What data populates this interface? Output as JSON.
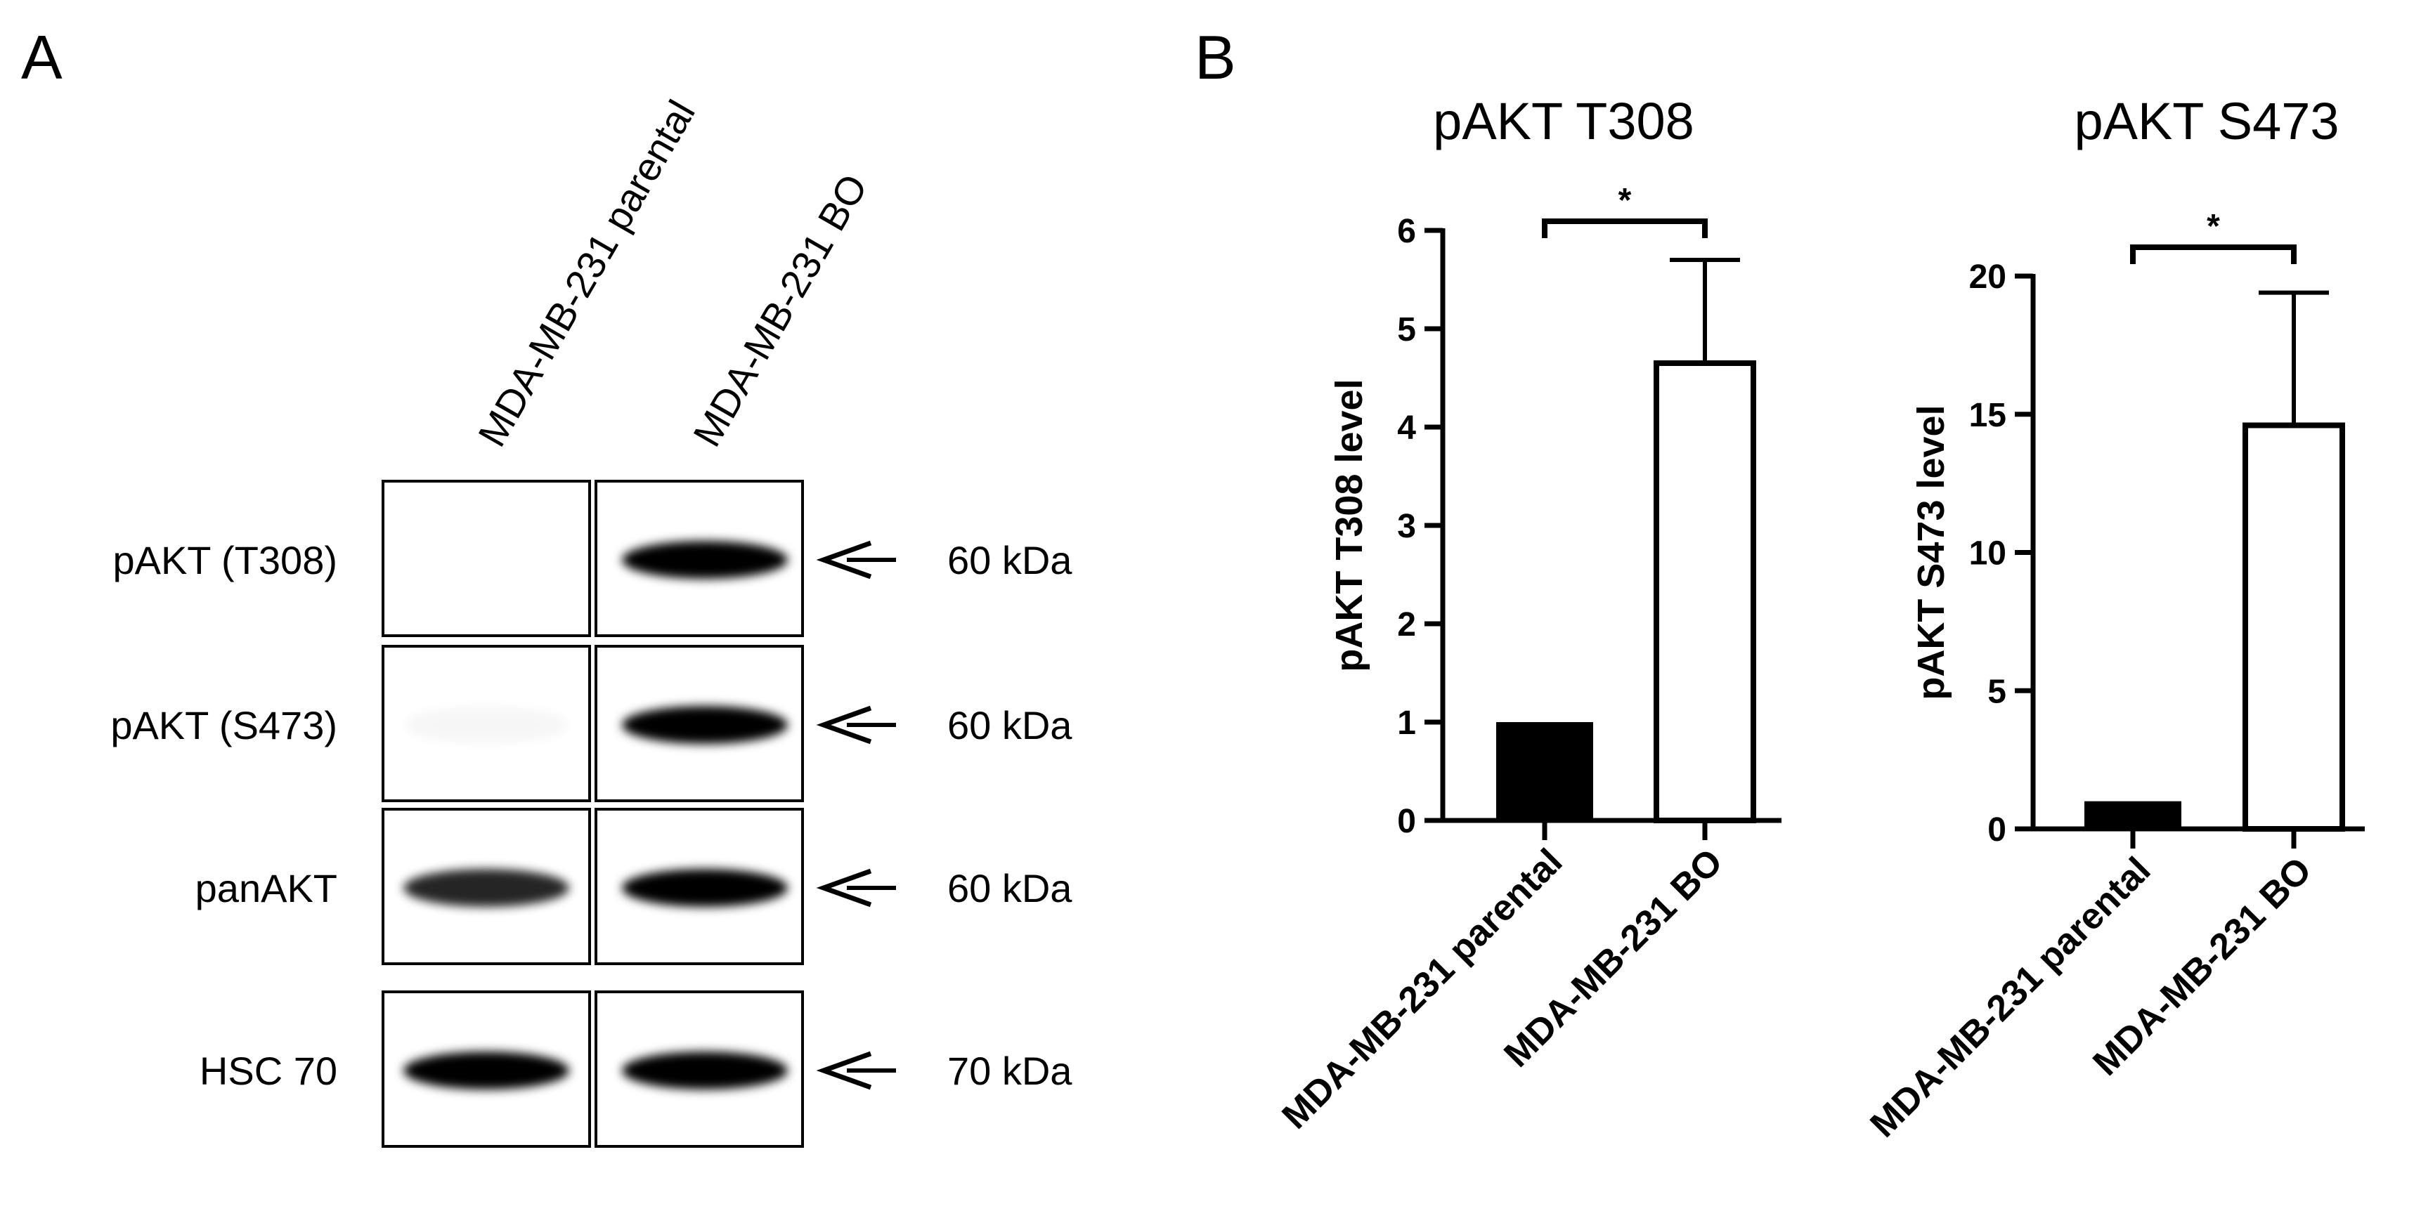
{
  "panel_a": {
    "letter": "A",
    "lanes": [
      "MDA-MB-231 parental",
      "MDA-MB-231 BO"
    ],
    "rows": [
      {
        "label": "pAKT (T308)",
        "size": "60 kDa",
        "band_intensity": [
          0.0,
          1.0
        ]
      },
      {
        "label": "pAKT (S473)",
        "size": "60 kDa",
        "band_intensity": [
          0.03,
          1.0
        ]
      },
      {
        "label": "panAKT",
        "size": "60 kDa",
        "band_intensity": [
          0.85,
          1.0
        ]
      },
      {
        "label": "HSC 70",
        "size": "70 kDa",
        "band_intensity": [
          1.0,
          1.0
        ]
      }
    ]
  },
  "panel_b": {
    "letter": "B"
  },
  "chart_data": [
    {
      "type": "bar",
      "title": "pAKT T308",
      "xlabel": "",
      "ylabel": "pAKT T308 level",
      "categories": [
        "MDA-MB-231 parental",
        "MDA-MB-231 BO"
      ],
      "values": [
        1.0,
        4.65
      ],
      "error_upper": [
        0,
        1.05
      ],
      "ylim": [
        0,
        6
      ],
      "yticks": [
        0,
        1,
        2,
        3,
        4,
        5,
        6
      ],
      "bar_fill": [
        "#000000",
        "#ffffff"
      ],
      "significance": {
        "between": [
          0,
          1
        ],
        "label": "*"
      }
    },
    {
      "type": "bar",
      "title": "pAKT S473",
      "xlabel": "",
      "ylabel": "pAKT S473 level",
      "categories": [
        "MDA-MB-231 parental",
        "MDA-MB-231 BO"
      ],
      "values": [
        1.0,
        14.6
      ],
      "error_upper": [
        0,
        4.8
      ],
      "ylim": [
        0,
        20
      ],
      "yticks": [
        0,
        5,
        10,
        15,
        20
      ],
      "bar_fill": [
        "#000000",
        "#ffffff"
      ],
      "significance": {
        "between": [
          0,
          1
        ],
        "label": "*"
      }
    }
  ]
}
